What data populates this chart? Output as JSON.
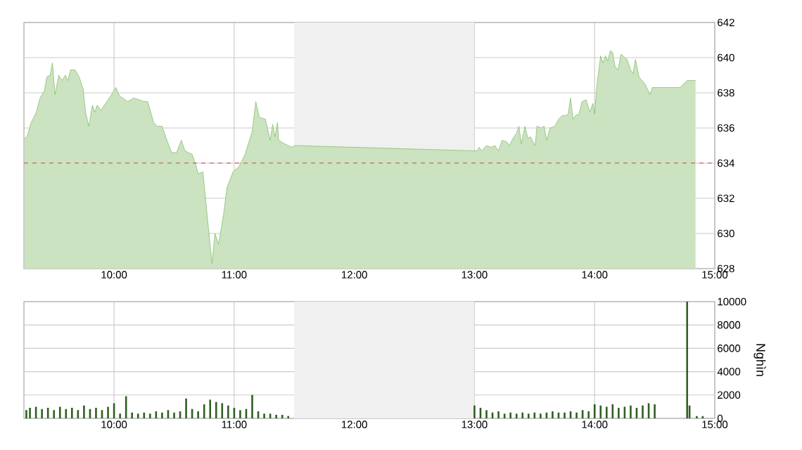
{
  "chart_data": [
    {
      "type": "area",
      "xlim": [
        9.25,
        15
      ],
      "ylim": [
        628,
        642
      ],
      "xticks": [
        {
          "value": 10,
          "label": "10:00"
        },
        {
          "value": 11,
          "label": "11:00"
        },
        {
          "value": 12,
          "label": "12:00"
        },
        {
          "value": 13,
          "label": "13:00"
        },
        {
          "value": 14,
          "label": "14:00"
        },
        {
          "value": 15,
          "label": "15:00"
        }
      ],
      "yticks": [
        628,
        630,
        632,
        634,
        636,
        638,
        640,
        642
      ],
      "grid": true,
      "ref_lines": [
        {
          "axis": "y",
          "value": 634,
          "color": "#cc3333",
          "line_style": "dashed"
        }
      ],
      "bands": [
        {
          "axis": "x",
          "from": 11.5,
          "to": 13,
          "color": "#f0f0f0"
        }
      ],
      "series": [
        {
          "color": "#6ab04c",
          "x": [
            9.255,
            9.275,
            9.31,
            9.353,
            9.384,
            9.42,
            9.44,
            9.468,
            9.487,
            9.509,
            9.54,
            9.567,
            9.594,
            9.618,
            9.637,
            9.676,
            9.71,
            9.743,
            9.763,
            9.79,
            9.82,
            9.84,
            9.86,
            9.89,
            9.94,
            9.98,
            10.016,
            10.047,
            10.074,
            10.113,
            10.164,
            10.21,
            10.25,
            10.28,
            10.33,
            10.36,
            10.4,
            10.44,
            10.48,
            10.52,
            10.56,
            10.59,
            10.65,
            10.68,
            10.7,
            10.74,
            10.78,
            10.815,
            10.84,
            10.87,
            10.91,
            10.94,
            10.99,
            11.04,
            11.09,
            11.15,
            11.18,
            11.21,
            11.26,
            11.3,
            11.32,
            11.34,
            11.36,
            11.37,
            11.42,
            11.48,
            11.5,
            12.99,
            13.02,
            13.04,
            13.06,
            13.1,
            13.14,
            13.17,
            13.2,
            13.23,
            13.27,
            13.29,
            13.32,
            13.35,
            13.37,
            13.39,
            13.42,
            13.445,
            13.465,
            13.505,
            13.52,
            13.555,
            13.58,
            13.6,
            13.63,
            13.67,
            13.7,
            13.73,
            13.76,
            13.78,
            13.8,
            13.82,
            13.84,
            13.87,
            13.895,
            13.93,
            13.96,
            13.985,
            14.0,
            14.02,
            14.05,
            14.07,
            14.09,
            14.11,
            14.13,
            14.15,
            14.17,
            14.195,
            14.22,
            14.25,
            14.27,
            14.3,
            14.32,
            14.34,
            14.37,
            14.42,
            14.46,
            14.48,
            14.71,
            14.77,
            14.84
          ],
          "values": [
            635.4,
            635.5,
            636.3,
            636.9,
            637.7,
            638.1,
            638.9,
            639.0,
            639.7,
            637.9,
            639.0,
            638.7,
            639.0,
            638.7,
            639.3,
            639.3,
            638.9,
            638.2,
            636.9,
            636.1,
            637.3,
            636.9,
            637.3,
            637.0,
            637.5,
            637.9,
            638.3,
            637.8,
            637.7,
            637.5,
            637.7,
            637.6,
            637.5,
            637.5,
            636.3,
            636.1,
            636.1,
            635.3,
            634.6,
            634.6,
            635.3,
            634.7,
            634.5,
            633.9,
            633.4,
            633.5,
            630.7,
            628.3,
            630.0,
            629.4,
            631.0,
            632.6,
            633.5,
            633.8,
            634.5,
            635.8,
            637.5,
            636.6,
            636.5,
            635.3,
            636.2,
            635.5,
            636.3,
            635.3,
            635.1,
            634.9,
            635.0,
            634.7,
            634.7,
            634.9,
            634.7,
            635.0,
            634.9,
            635.0,
            634.7,
            635.3,
            635.2,
            635.0,
            635.4,
            635.7,
            636.1,
            635.1,
            636.1,
            635.4,
            635.5,
            635.0,
            636.1,
            636.0,
            636.1,
            635.3,
            636.0,
            636.1,
            636.5,
            636.7,
            636.7,
            636.8,
            637.7,
            636.5,
            636.7,
            636.8,
            637.5,
            637.6,
            636.9,
            637.4,
            636.8,
            638.5,
            640.1,
            639.7,
            640.1,
            639.8,
            640.4,
            640.3,
            639.5,
            639.3,
            640.2,
            640.0,
            639.9,
            639.3,
            639.1,
            639.9,
            638.9,
            638.5,
            637.9,
            638.3,
            638.3,
            638.7,
            638.7
          ]
        }
      ]
    },
    {
      "type": "bar",
      "xlim": [
        9.25,
        15
      ],
      "ylim": [
        0,
        10000
      ],
      "xticks": [
        {
          "value": 10,
          "label": "10:00"
        },
        {
          "value": 11,
          "label": "11:00"
        },
        {
          "value": 12,
          "label": "12:00"
        },
        {
          "value": 13,
          "label": "13:00"
        },
        {
          "value": 14,
          "label": "14:00"
        },
        {
          "value": 15,
          "label": "15:00"
        }
      ],
      "yticks": [
        0,
        2000,
        4000,
        6000,
        8000,
        10000
      ],
      "grid": true,
      "ylabel": "Nghìn",
      "bands": [
        {
          "axis": "x",
          "from": 11.5,
          "to": 13,
          "color": "#f0f0f0"
        }
      ],
      "series": [
        {
          "color": "#2f5f22",
          "x": [
            9.27,
            9.3,
            9.35,
            9.4,
            9.45,
            9.5,
            9.55,
            9.6,
            9.65,
            9.7,
            9.75,
            9.8,
            9.85,
            9.9,
            9.95,
            10.0,
            10.05,
            10.1,
            10.15,
            10.2,
            10.25,
            10.3,
            10.35,
            10.4,
            10.45,
            10.5,
            10.55,
            10.6,
            10.65,
            10.7,
            10.75,
            10.8,
            10.85,
            10.9,
            10.95,
            11.0,
            11.05,
            11.1,
            11.15,
            11.2,
            11.25,
            11.3,
            11.35,
            11.4,
            11.45,
            13.0,
            13.05,
            13.1,
            13.15,
            13.2,
            13.25,
            13.3,
            13.35,
            13.4,
            13.45,
            13.5,
            13.55,
            13.6,
            13.65,
            13.7,
            13.75,
            13.8,
            13.85,
            13.9,
            13.95,
            14.0,
            14.05,
            14.1,
            14.15,
            14.2,
            14.25,
            14.3,
            14.35,
            14.4,
            14.45,
            14.5,
            14.77,
            14.79,
            14.85,
            14.9
          ],
          "values": [
            700,
            900,
            1000,
            800,
            900,
            700,
            1000,
            800,
            900,
            700,
            1100,
            800,
            900,
            700,
            1000,
            1300,
            400,
            1900,
            500,
            400,
            500,
            400,
            600,
            500,
            700,
            500,
            600,
            1700,
            800,
            600,
            1200,
            1600,
            1400,
            1300,
            1100,
            900,
            700,
            800,
            2000,
            600,
            400,
            400,
            300,
            300,
            200,
            1100,
            900,
            700,
            500,
            600,
            400,
            500,
            400,
            500,
            400,
            500,
            400,
            500,
            600,
            500,
            500,
            600,
            500,
            700,
            600,
            1200,
            1100,
            1000,
            1200,
            900,
            1000,
            1100,
            900,
            1100,
            1300,
            1200,
            10000,
            1100,
            200,
            200
          ]
        }
      ]
    }
  ]
}
